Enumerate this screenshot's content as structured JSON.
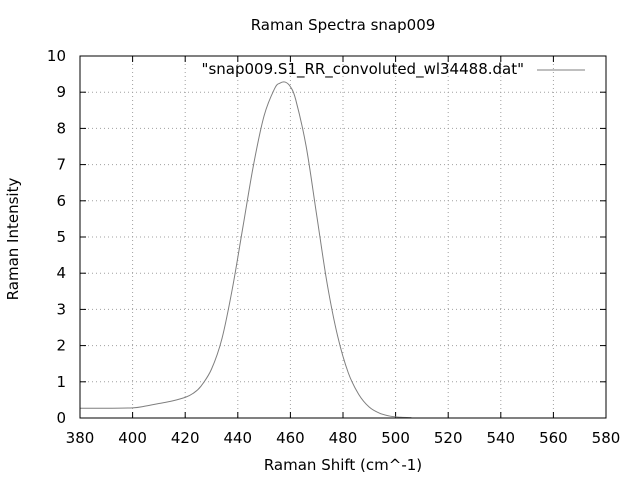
{
  "chart_data": {
    "type": "line",
    "title": "Raman Spectra snap009",
    "xlabel": "Raman Shift (cm^-1)",
    "ylabel": "Raman Intensity",
    "xlim": [
      380,
      580
    ],
    "ylim": [
      0,
      10
    ],
    "xticks": [
      380,
      400,
      420,
      440,
      460,
      480,
      500,
      520,
      540,
      560,
      580
    ],
    "yticks": [
      0,
      1,
      2,
      3,
      4,
      5,
      6,
      7,
      8,
      9,
      10
    ],
    "grid": true,
    "legend_position": "top-right",
    "line_color": "#7f7f7f",
    "series": [
      {
        "name": "\"snap009.S1_RR_convoluted_wl34488.dat\"",
        "x": [
          380,
          390,
          400,
          405,
          410,
          415,
          420,
          423,
          426,
          430,
          434,
          438,
          442,
          446,
          450,
          454,
          456,
          458,
          460,
          462,
          466,
          470,
          474,
          478,
          482,
          486,
          490,
          494,
          498,
          502,
          506
        ],
        "y": [
          0.27,
          0.27,
          0.28,
          0.33,
          0.4,
          0.47,
          0.57,
          0.68,
          0.88,
          1.35,
          2.2,
          3.6,
          5.3,
          7.0,
          8.35,
          9.1,
          9.25,
          9.28,
          9.15,
          8.8,
          7.5,
          5.6,
          3.7,
          2.25,
          1.25,
          0.65,
          0.3,
          0.13,
          0.05,
          0.02,
          0.01
        ]
      }
    ]
  }
}
